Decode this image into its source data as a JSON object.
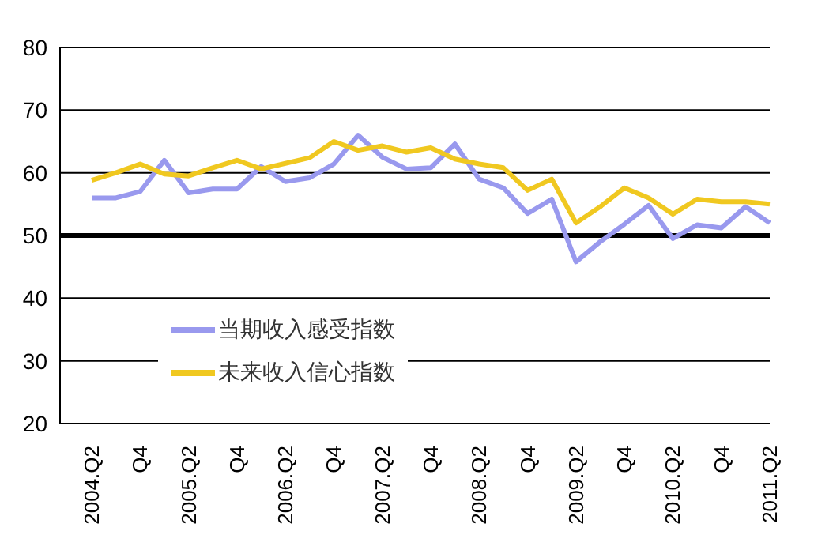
{
  "chart_data": {
    "type": "line",
    "categories": [
      "2004.Q2",
      null,
      "Q4",
      null,
      "2005.Q2",
      null,
      "Q4",
      null,
      "2006.Q2",
      null,
      "Q4",
      null,
      "2007.Q2",
      null,
      "Q4",
      null,
      "2008.Q2",
      null,
      "Q4",
      null,
      "2009.Q2",
      null,
      "Q4",
      null,
      "2010.Q2",
      null,
      "Q4",
      null,
      "2011.Q2"
    ],
    "series": [
      {
        "name": "当期收入感受指数",
        "color": "#9999ee",
        "values": [
          56,
          56,
          57,
          62,
          56.8,
          57.4,
          57.4,
          61,
          58.6,
          59.2,
          61.4,
          66,
          62.5,
          60.6,
          60.8,
          64.6,
          59,
          57.6,
          53.5,
          55.8,
          45.8,
          49,
          51.8,
          54.8,
          49.5,
          51.7,
          51.2,
          54.6,
          52
        ]
      },
      {
        "name": "未来收入信心指数",
        "color": "#f0c820",
        "values": [
          58.8,
          60,
          61.4,
          59.8,
          59.5,
          60.8,
          62,
          60.6,
          61.5,
          62.4,
          65,
          63.6,
          64.3,
          63.3,
          64,
          62.2,
          61.4,
          60.8,
          57.2,
          59,
          52,
          54.6,
          57.6,
          56,
          53.4,
          55.8,
          55.4,
          55.4,
          55
        ]
      }
    ],
    "ylim": [
      20,
      80
    ],
    "yticks": [
      20,
      30,
      40,
      50,
      60,
      70,
      80
    ],
    "grid": "y",
    "legend": "bottom left",
    "marker": "none",
    "line_style": "solid",
    "ref_lines": [
      {
        "axis": "y",
        "value": 50,
        "color": "#000000"
      }
    ]
  }
}
